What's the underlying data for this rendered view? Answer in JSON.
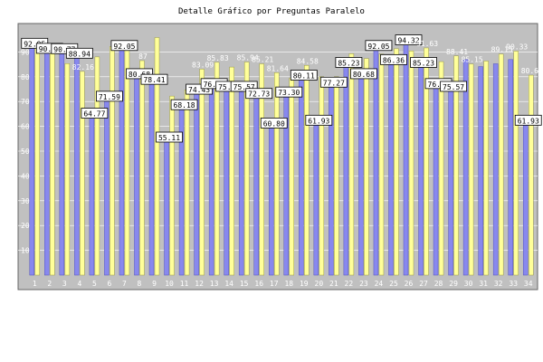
{
  "chart_data": {
    "type": "bar",
    "title": "Detalle Gráfico por Preguntas Paralelo",
    "xlabel": "",
    "ylabel": "",
    "ylim": [
      0,
      100
    ],
    "yticks": [
      10,
      20,
      30,
      40,
      50,
      60,
      70,
      80,
      90
    ],
    "grid": true,
    "legend": "none",
    "categories": [
      "1",
      "2",
      "3",
      "4",
      "5",
      "6",
      "7",
      "8",
      "9",
      "10",
      "11",
      "12",
      "13",
      "14",
      "15",
      "16",
      "17",
      "18",
      "19",
      "20",
      "21",
      "22",
      "23",
      "24",
      "25",
      "26",
      "27",
      "28",
      "29",
      "30",
      "31",
      "32",
      "33",
      "34"
    ],
    "series": [
      {
        "color": "#8888ee",
        "values": [
          92.95,
          90.91,
          90.77,
          88.94,
          64.77,
          71.59,
          92.05,
          80.68,
          78.41,
          55.11,
          68.18,
          74.43,
          76.7,
          75.57,
          75.57,
          72.73,
          60.8,
          73.3,
          80.11,
          61.93,
          77.27,
          85.23,
          80.68,
          92.05,
          86.36,
          94.32,
          85.23,
          76.7,
          75.57,
          86.93,
          84.09,
          85.23,
          86.93,
          61.93
        ],
        "labels": [
          "92.95",
          "90.91",
          "90.77",
          "88.94",
          "64.77",
          "71.59",
          "92.05",
          "80.68",
          "78.41",
          "55.11",
          "68.18",
          "74.43",
          "76.70",
          "75.57",
          "75.57",
          "72.73",
          "60.80",
          "73.30",
          "80.11",
          "61.93",
          "77.27",
          "85.23",
          "80.68",
          "92.05",
          "86.36",
          "94.32",
          "85.23",
          "76.70",
          "75.57",
          "",
          "",
          "",
          "",
          "61.93"
        ]
      },
      {
        "color": "#ffff99",
        "values": [
          93.5,
          92.4,
          85.3,
          82.16,
          88.0,
          92.2,
          93.87,
          86.5,
          95.8,
          72.2,
          74.7,
          83.09,
          85.83,
          83.9,
          85.94,
          85.21,
          81.64,
          79.5,
          84.58,
          80.0,
          80.0,
          89.3,
          87.36,
          89.1,
          91.3,
          90.4,
          91.63,
          86.1,
          88.41,
          85.15,
          86.33,
          89.15,
          90.33,
          80.63
        ],
        "labels": [
          "",
          "",
          "",
          "82.16",
          "",
          "",
          "",
          "87",
          "",
          "",
          "",
          "83.09",
          "85.83",
          "",
          "85.94",
          "85.21",
          "81.64",
          "",
          "84.58",
          "",
          "",
          "",
          "",
          "",
          "",
          "",
          "91.63",
          "",
          "88.41",
          "85.15",
          "",
          "89.15",
          "90.33",
          "80.63"
        ]
      }
    ]
  }
}
